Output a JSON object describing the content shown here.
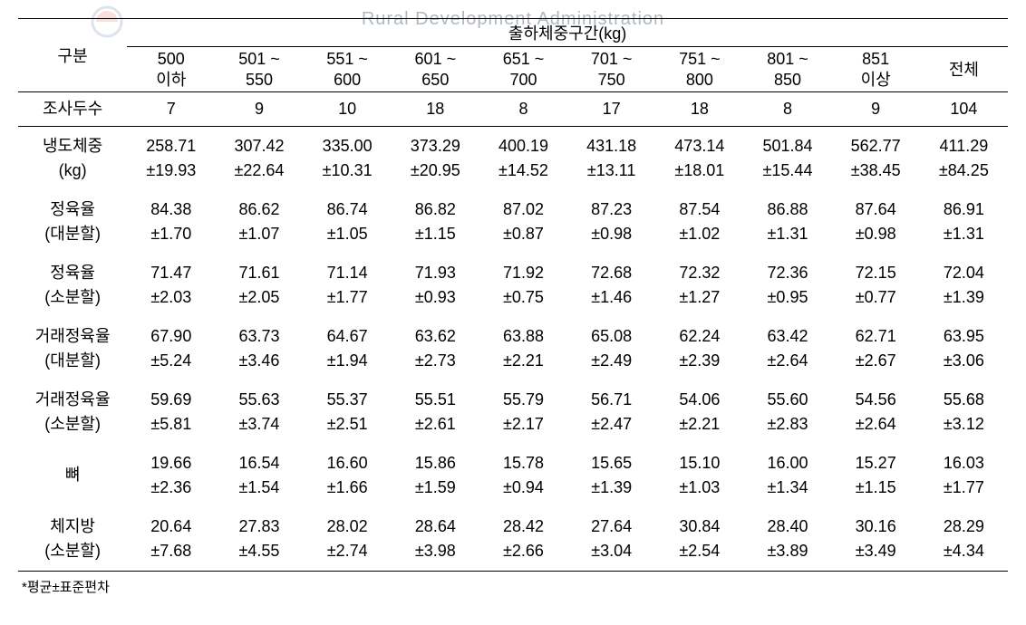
{
  "watermark": {
    "en": "Rural Development Administration",
    "kr": "출하체중구간(kg)"
  },
  "table": {
    "header": {
      "category": "구분",
      "super": "출하체중구간(kg)",
      "ranges": [
        {
          "top": "500",
          "bottom": "이하"
        },
        {
          "top": "501 ~",
          "bottom": "550"
        },
        {
          "top": "551 ~",
          "bottom": "600"
        },
        {
          "top": "601 ~",
          "bottom": "650"
        },
        {
          "top": "651 ~",
          "bottom": "700"
        },
        {
          "top": "701 ~",
          "bottom": "750"
        },
        {
          "top": "751 ~",
          "bottom": "800"
        },
        {
          "top": "801 ~",
          "bottom": "850"
        },
        {
          "top": "851",
          "bottom": "이상"
        },
        {
          "top": "전체",
          "bottom": ""
        }
      ]
    },
    "survey": {
      "label": "조사두수",
      "values": [
        "7",
        "9",
        "10",
        "18",
        "8",
        "17",
        "18",
        "8",
        "9",
        "104"
      ]
    },
    "rows": [
      {
        "label_top": "냉도체중",
        "label_bottom": "(kg)",
        "cells": [
          {
            "m": "258.71",
            "s": "±19.93"
          },
          {
            "m": "307.42",
            "s": "±22.64"
          },
          {
            "m": "335.00",
            "s": "±10.31"
          },
          {
            "m": "373.29",
            "s": "±20.95"
          },
          {
            "m": "400.19",
            "s": "±14.52"
          },
          {
            "m": "431.18",
            "s": "±13.11"
          },
          {
            "m": "473.14",
            "s": "±18.01"
          },
          {
            "m": "501.84",
            "s": "±15.44"
          },
          {
            "m": "562.77",
            "s": "±38.45"
          },
          {
            "m": "411.29",
            "s": "±84.25"
          }
        ]
      },
      {
        "label_top": "정육율",
        "label_bottom": "(대분할)",
        "cells": [
          {
            "m": "84.38",
            "s": "±1.70"
          },
          {
            "m": "86.62",
            "s": "±1.07"
          },
          {
            "m": "86.74",
            "s": "±1.05"
          },
          {
            "m": "86.82",
            "s": "±1.15"
          },
          {
            "m": "87.02",
            "s": "±0.87"
          },
          {
            "m": "87.23",
            "s": "±0.98"
          },
          {
            "m": "87.54",
            "s": "±1.02"
          },
          {
            "m": "86.88",
            "s": "±1.31"
          },
          {
            "m": "87.64",
            "s": "±0.98"
          },
          {
            "m": "86.91",
            "s": "±1.31"
          }
        ]
      },
      {
        "label_top": "정육율",
        "label_bottom": "(소분할)",
        "cells": [
          {
            "m": "71.47",
            "s": "±2.03"
          },
          {
            "m": "71.61",
            "s": "±2.05"
          },
          {
            "m": "71.14",
            "s": "±1.77"
          },
          {
            "m": "71.93",
            "s": "±0.93"
          },
          {
            "m": "71.92",
            "s": "±0.75"
          },
          {
            "m": "72.68",
            "s": "±1.46"
          },
          {
            "m": "72.32",
            "s": "±1.27"
          },
          {
            "m": "72.36",
            "s": "±0.95"
          },
          {
            "m": "72.15",
            "s": "±0.77"
          },
          {
            "m": "72.04",
            "s": "±1.39"
          }
        ]
      },
      {
        "label_top": "거래정육율",
        "label_bottom": "(대분할)",
        "cells": [
          {
            "m": "67.90",
            "s": "±5.24"
          },
          {
            "m": "63.73",
            "s": "±3.46"
          },
          {
            "m": "64.67",
            "s": "±1.94"
          },
          {
            "m": "63.62",
            "s": "±2.73"
          },
          {
            "m": "63.88",
            "s": "±2.21"
          },
          {
            "m": "65.08",
            "s": "±2.49"
          },
          {
            "m": "62.24",
            "s": "±2.39"
          },
          {
            "m": "63.42",
            "s": "±2.64"
          },
          {
            "m": "62.71",
            "s": "±2.67"
          },
          {
            "m": "63.95",
            "s": "±3.06"
          }
        ]
      },
      {
        "label_top": "거래정육율",
        "label_bottom": "(소분할)",
        "cells": [
          {
            "m": "59.69",
            "s": "±5.81"
          },
          {
            "m": "55.63",
            "s": "±3.74"
          },
          {
            "m": "55.37",
            "s": "±2.51"
          },
          {
            "m": "55.51",
            "s": "±2.61"
          },
          {
            "m": "55.79",
            "s": "±2.17"
          },
          {
            "m": "56.71",
            "s": "±2.47"
          },
          {
            "m": "54.06",
            "s": "±2.21"
          },
          {
            "m": "55.60",
            "s": "±2.83"
          },
          {
            "m": "54.56",
            "s": "±2.64"
          },
          {
            "m": "55.68",
            "s": "±3.12"
          }
        ]
      },
      {
        "label_top": "뼈",
        "label_bottom": "",
        "cells": [
          {
            "m": "19.66",
            "s": "±2.36"
          },
          {
            "m": "16.54",
            "s": "±1.54"
          },
          {
            "m": "16.60",
            "s": "±1.66"
          },
          {
            "m": "15.86",
            "s": "±1.59"
          },
          {
            "m": "15.78",
            "s": "±0.94"
          },
          {
            "m": "15.65",
            "s": "±1.39"
          },
          {
            "m": "15.10",
            "s": "±1.03"
          },
          {
            "m": "16.00",
            "s": "±1.34"
          },
          {
            "m": "15.27",
            "s": "±1.15"
          },
          {
            "m": "16.03",
            "s": "±1.77"
          }
        ]
      },
      {
        "label_top": "체지방",
        "label_bottom": "(소분할)",
        "cells": [
          {
            "m": "20.64",
            "s": "±7.68"
          },
          {
            "m": "27.83",
            "s": "±4.55"
          },
          {
            "m": "28.02",
            "s": "±2.74"
          },
          {
            "m": "28.64",
            "s": "±3.98"
          },
          {
            "m": "28.42",
            "s": "±2.66"
          },
          {
            "m": "27.64",
            "s": "±3.04"
          },
          {
            "m": "30.84",
            "s": "±2.54"
          },
          {
            "m": "28.40",
            "s": "±3.89"
          },
          {
            "m": "30.16",
            "s": "±3.49"
          },
          {
            "m": "28.29",
            "s": "±4.34"
          }
        ]
      }
    ]
  },
  "footnote": "*평균±표준편차"
}
